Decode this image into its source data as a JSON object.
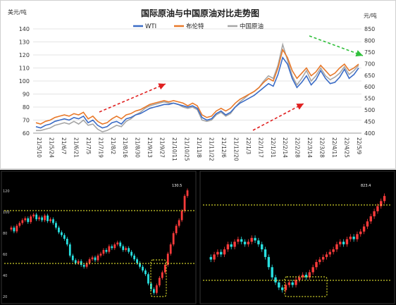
{
  "chart_data": [
    {
      "type": "line",
      "title": "国际原油与中国原油对比走势图",
      "ylabel_left": "美元/吨",
      "ylabel_right": "元/吨",
      "left_ticks": [
        "60",
        "70",
        "80",
        "90",
        "100",
        "110",
        "120",
        "130",
        "140"
      ],
      "left_ylim": [
        60,
        140
      ],
      "right_ticks": [
        "400",
        "450",
        "500",
        "550",
        "600",
        "650",
        "700",
        "750",
        "800",
        "850"
      ],
      "right_ylim": [
        400,
        850
      ],
      "x_ticks": [
        "21/5/10",
        "21/5/24",
        "21/6/7",
        "21/6/21",
        "21/7/5",
        "21/7/19",
        "21/8/2",
        "21/8/16",
        "21/8/30",
        "21/9/13",
        "21/9/27",
        "21/10/11",
        "21/10/25",
        "21/11/8",
        "21/11/22",
        "21/12/6",
        "21/12/20",
        "22/1/3",
        "22/1/17",
        "22/1/31",
        "22/2/14",
        "22/2/28",
        "22/3/14",
        "22/3/28",
        "22/4/11",
        "22/4/25",
        "22/5/9"
      ],
      "legend_position": "top-center",
      "grid": true,
      "series": [
        {
          "name": "WTI",
          "color": "#3b6cc6",
          "values": [
            65,
            64,
            66,
            67,
            69,
            70,
            71,
            70,
            72,
            71,
            73,
            68,
            70,
            66,
            64,
            65,
            68,
            69,
            67,
            71,
            72,
            74,
            75,
            77,
            79,
            80,
            81,
            82,
            82,
            83,
            82,
            81,
            80,
            81,
            79,
            72,
            70,
            71,
            75,
            77,
            74,
            76,
            80,
            83,
            85,
            87,
            89,
            92,
            95,
            98,
            96,
            105,
            118,
            113,
            102,
            95,
            99,
            104,
            97,
            101,
            108,
            102,
            98,
            99,
            103,
            109,
            102,
            105,
            110
          ]
        },
        {
          "name": "布伦特",
          "color": "#e8792a",
          "values": [
            68,
            67,
            69,
            70,
            72,
            73,
            74,
            73,
            75,
            74,
            76,
            71,
            73,
            69,
            67,
            68,
            71,
            73,
            71,
            74,
            75,
            77,
            78,
            80,
            82,
            83,
            84,
            85,
            84,
            85,
            84,
            83,
            81,
            83,
            81,
            74,
            72,
            73,
            77,
            79,
            77,
            79,
            83,
            86,
            88,
            90,
            92,
            95,
            99,
            102,
            100,
            110,
            124,
            118,
            108,
            102,
            106,
            110,
            104,
            107,
            112,
            108,
            104,
            106,
            110,
            113,
            108,
            110,
            113
          ]
        },
        {
          "name": "中国原油",
          "color": "#a6a6a6",
          "values": [
            62,
            62,
            63,
            64,
            66,
            67,
            68,
            67,
            69,
            67,
            70,
            66,
            67,
            63,
            61,
            62,
            64,
            66,
            65,
            69,
            71,
            74,
            76,
            79,
            81,
            82,
            83,
            84,
            83,
            83,
            82,
            80,
            79,
            80,
            78,
            70,
            69,
            70,
            74,
            76,
            73,
            75,
            80,
            84,
            87,
            90,
            92,
            95,
            100,
            104,
            102,
            112,
            128,
            116,
            104,
            97,
            102,
            108,
            100,
            104,
            110,
            104,
            101,
            103,
            106,
            111,
            105,
            108,
            112
          ]
        }
      ],
      "annotations": [
        "red dashed arrow (rising trend) from 21/8/2 to 21/9/13",
        "red dashed arrow (rising trend) from 21/12/20 to 22/2/21",
        "green dashed arrow (falling trend) from 22/3/7 to 22/5/9"
      ]
    },
    {
      "type": "candlestick",
      "notes": "Left lower panel: candlestick chart on black background with two yellow dotted horizontal levels and a yellow dotted highlight box near the low",
      "y_ticks": [
        "120",
        "100",
        "80",
        "60",
        "40",
        "20"
      ],
      "peak_label": "130.5",
      "low_label": "",
      "colors": {
        "up": "#ff3b3b",
        "down": "#28e0e0",
        "level": "#ffff33"
      }
    },
    {
      "type": "candlestick",
      "notes": "Right lower panel: candlestick chart on black background with two yellow dotted horizontal levels and a yellow dotted highlight box near the low",
      "peak_label": "823.4",
      "low_label": "",
      "colors": {
        "up": "#ff3b3b",
        "down": "#28e0e0",
        "level": "#ffff33"
      }
    }
  ]
}
